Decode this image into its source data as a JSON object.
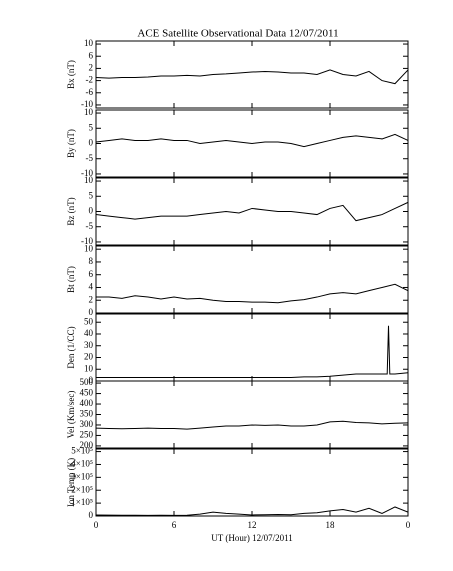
{
  "chart_data": [
    {
      "type": "line",
      "title": "ACE Satellite Observational Data   12/07/2011",
      "ylabel": "Bx (nT)",
      "ylim": [
        -11,
        11
      ],
      "yticks": [
        10,
        6,
        2,
        -2,
        -6,
        -10
      ],
      "x": [
        0,
        1,
        2,
        3,
        4,
        5,
        6,
        7,
        8,
        9,
        10,
        11,
        12,
        13,
        14,
        15,
        16,
        17,
        18,
        19,
        20,
        21,
        22,
        23,
        24
      ],
      "series": [
        {
          "color": "#000000",
          "values": [
            -1,
            -1.2,
            -1,
            -1,
            -0.8,
            -0.5,
            -0.5,
            -0.3,
            -0.5,
            0,
            0.2,
            0.5,
            0.8,
            1,
            0.8,
            0.5,
            0.5,
            0,
            1.5,
            0,
            -0.5,
            1,
            -2,
            -3,
            1.5
          ]
        }
      ]
    },
    {
      "type": "line",
      "ylabel": "By (nT)",
      "ylim": [
        -11,
        11
      ],
      "yticks": [
        10,
        5,
        0,
        -5,
        -10
      ],
      "x": [
        0,
        1,
        2,
        3,
        4,
        5,
        6,
        7,
        8,
        9,
        10,
        11,
        12,
        13,
        14,
        15,
        16,
        17,
        18,
        19,
        20,
        21,
        22,
        23,
        24
      ],
      "series": [
        {
          "color": "#000000",
          "values": [
            0.5,
            1,
            1.5,
            1,
            1,
            1.5,
            1,
            1,
            0,
            0.5,
            1,
            0.5,
            0,
            0.5,
            0.5,
            0,
            -1,
            0,
            1,
            2,
            2.5,
            2,
            1.5,
            3,
            1
          ]
        }
      ]
    },
    {
      "type": "line",
      "ylabel": "Bz (nT)",
      "ylim": [
        -11,
        11
      ],
      "yticks": [
        10,
        5,
        0,
        -5,
        -10
      ],
      "x": [
        0,
        1,
        2,
        3,
        4,
        5,
        6,
        7,
        8,
        9,
        10,
        11,
        12,
        13,
        14,
        15,
        16,
        17,
        18,
        19,
        20,
        21,
        22,
        23,
        24
      ],
      "series": [
        {
          "color": "#000000",
          "values": [
            -1,
            -1.5,
            -2,
            -2.5,
            -2,
            -1.5,
            -1.5,
            -1.5,
            -1,
            -0.5,
            0,
            -0.5,
            1,
            0.5,
            0,
            0,
            -0.5,
            -1,
            1,
            2,
            -3,
            -2,
            -1,
            1,
            3
          ]
        }
      ]
    },
    {
      "type": "line",
      "ylabel": "Bt (nT)",
      "ylim": [
        0,
        10.5
      ],
      "yticks": [
        0,
        2,
        4,
        6,
        8,
        10
      ],
      "x": [
        0,
        1,
        2,
        3,
        4,
        5,
        6,
        7,
        8,
        9,
        10,
        11,
        12,
        13,
        14,
        15,
        16,
        17,
        18,
        19,
        20,
        21,
        22,
        23,
        24
      ],
      "series": [
        {
          "color": "#000000",
          "values": [
            2.5,
            2.5,
            2.3,
            2.7,
            2.5,
            2.2,
            2.5,
            2.2,
            2.3,
            2,
            1.8,
            1.8,
            1.7,
            1.7,
            1.6,
            1.9,
            2.1,
            2.5,
            3,
            3.2,
            3,
            3.5,
            4,
            4.5,
            3.5
          ]
        }
      ]
    },
    {
      "type": "line",
      "ylabel": "Den (1/CC)",
      "ylim": [
        0,
        57
      ],
      "yticks": [
        0,
        10,
        20,
        30,
        40,
        50
      ],
      "x": [
        0,
        1,
        2,
        3,
        4,
        5,
        6,
        7,
        8,
        9,
        10,
        11,
        12,
        13,
        14,
        15,
        16,
        17,
        18,
        19,
        20,
        21,
        22,
        22.4,
        22.5,
        22.6,
        23,
        24
      ],
      "series": [
        {
          "color": "#000000",
          "values": [
            3,
            3,
            3,
            3,
            3,
            3,
            3,
            3,
            3,
            3,
            3,
            3,
            3,
            3,
            3,
            3,
            3.5,
            3.5,
            4,
            5,
            6,
            6,
            6,
            6,
            47,
            6,
            6,
            7
          ]
        }
      ]
    },
    {
      "type": "line",
      "ylabel": "Vel (Km/sec)",
      "ylim": [
        190,
        510
      ],
      "yticks": [
        200,
        250,
        300,
        350,
        400,
        450,
        500
      ],
      "x": [
        0,
        1,
        2,
        3,
        4,
        5,
        6,
        7,
        8,
        9,
        10,
        11,
        12,
        13,
        14,
        15,
        16,
        17,
        18,
        19,
        20,
        21,
        22,
        23,
        24
      ],
      "series": [
        {
          "color": "#000000",
          "values": [
            285,
            283,
            282,
            283,
            285,
            283,
            283,
            280,
            285,
            290,
            295,
            295,
            300,
            298,
            300,
            295,
            295,
            300,
            315,
            318,
            312,
            310,
            305,
            308,
            310
          ]
        }
      ]
    },
    {
      "type": "line",
      "ylabel": "Ion Temp (K)",
      "ylim": [
        0,
        520000
      ],
      "yticks": [
        0,
        {
          "value": 100000,
          "label": "1×10⁵"
        },
        {
          "value": 200000,
          "label": "2×10⁵"
        },
        {
          "value": 300000,
          "label": "3×10⁵"
        },
        {
          "value": 400000,
          "label": "4×10⁵"
        },
        {
          "value": 500000,
          "label": "5×10⁵"
        }
      ],
      "xlabel": "UT (Hour)  12/07/2011",
      "xlim": [
        0,
        24
      ],
      "xticks": [
        0,
        6,
        12,
        18,
        {
          "value": 24,
          "label": "0"
        }
      ],
      "x": [
        0,
        1,
        2,
        3,
        4,
        5,
        6,
        7,
        8,
        9,
        10,
        11,
        12,
        13,
        14,
        15,
        16,
        17,
        18,
        19,
        20,
        21,
        22,
        23,
        24
      ],
      "series": [
        {
          "color": "#000000",
          "values": [
            8000,
            7000,
            6000,
            6000,
            5000,
            6000,
            5000,
            6000,
            15000,
            30000,
            20000,
            15000,
            8000,
            10000,
            12000,
            10000,
            20000,
            25000,
            40000,
            50000,
            30000,
            60000,
            20000,
            70000,
            30000
          ]
        }
      ]
    }
  ]
}
